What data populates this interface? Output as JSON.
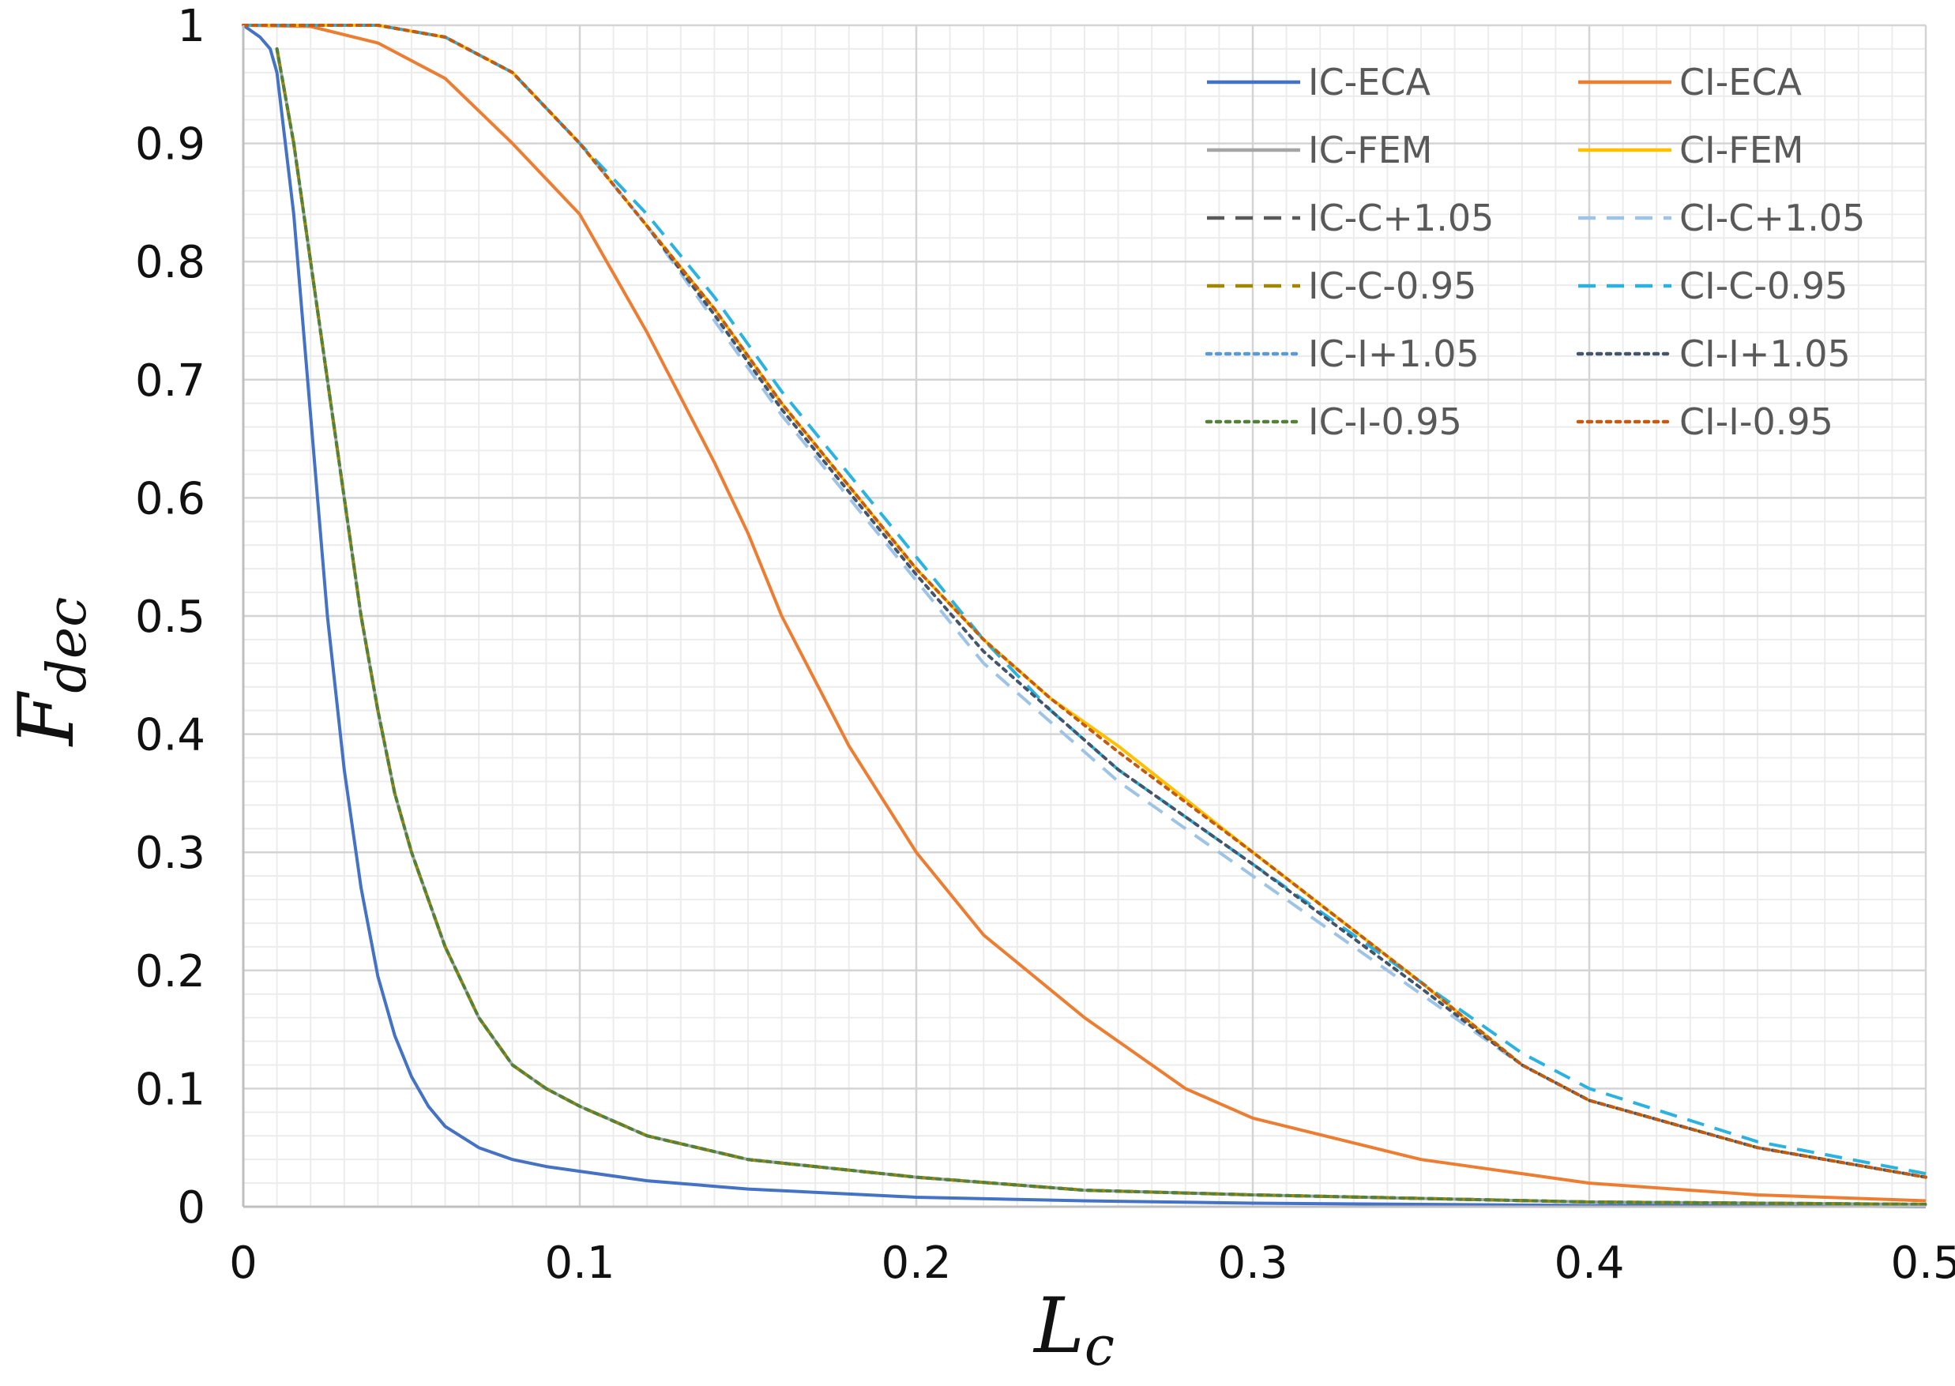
{
  "chart_data": {
    "type": "line",
    "title": "",
    "xlabel": "L",
    "xlabel_sub": "c",
    "ylabel": "F",
    "ylabel_sub": "dec",
    "xlim": [
      0,
      0.5
    ],
    "ylim": [
      0,
      1
    ],
    "grid": true,
    "minor_grid": true,
    "legend_position": "top-right",
    "x_ticks": [
      0,
      0.1,
      0.2,
      0.3,
      0.4,
      0.5
    ],
    "x_tick_labels": [
      "0",
      "0.1",
      "0.2",
      "0.3",
      "0.4",
      "0.5"
    ],
    "y_ticks": [
      0,
      0.1,
      0.2,
      0.3,
      0.4,
      0.5,
      0.6,
      0.7,
      0.8,
      0.9,
      1
    ],
    "y_tick_labels": [
      "0",
      "0.1",
      "0.2",
      "0.3",
      "0.4",
      "0.5",
      "0.6",
      "0.7",
      "0.8",
      "0.9",
      "1"
    ],
    "series": [
      {
        "name": "IC-ECA",
        "color": "#4472C4",
        "style": "solid",
        "width": 4,
        "x": [
          0,
          0.005,
          0.008,
          0.01,
          0.015,
          0.02,
          0.025,
          0.03,
          0.035,
          0.04,
          0.045,
          0.05,
          0.055,
          0.06,
          0.07,
          0.08,
          0.09,
          0.1,
          0.12,
          0.15,
          0.2,
          0.25,
          0.3,
          0.35,
          0.4,
          0.45,
          0.5
        ],
        "y": [
          1.0,
          0.99,
          0.98,
          0.96,
          0.84,
          0.67,
          0.5,
          0.37,
          0.27,
          0.195,
          0.145,
          0.11,
          0.085,
          0.068,
          0.05,
          0.04,
          0.034,
          0.03,
          0.022,
          0.015,
          0.008,
          0.005,
          0.003,
          0.002,
          0.001,
          0.001,
          0.0
        ]
      },
      {
        "name": "CI-ECA",
        "color": "#ED7D31",
        "style": "solid",
        "width": 4,
        "x": [
          0,
          0.02,
          0.04,
          0.06,
          0.08,
          0.1,
          0.12,
          0.14,
          0.15,
          0.16,
          0.18,
          0.2,
          0.22,
          0.25,
          0.28,
          0.3,
          0.35,
          0.4,
          0.45,
          0.5
        ],
        "y": [
          1.0,
          0.999,
          0.985,
          0.955,
          0.9,
          0.84,
          0.74,
          0.63,
          0.57,
          0.5,
          0.39,
          0.3,
          0.23,
          0.16,
          0.1,
          0.075,
          0.04,
          0.02,
          0.01,
          0.005
        ]
      },
      {
        "name": "IC-FEM",
        "color": "#A5A5A5",
        "style": "solid",
        "width": 4,
        "x": [
          0.01,
          0.015,
          0.02,
          0.025,
          0.03,
          0.035,
          0.04,
          0.045,
          0.05,
          0.06,
          0.07,
          0.08,
          0.09,
          0.1,
          0.12,
          0.15,
          0.2,
          0.25,
          0.3,
          0.4,
          0.5
        ],
        "y": [
          0.98,
          0.9,
          0.8,
          0.7,
          0.6,
          0.5,
          0.42,
          0.35,
          0.3,
          0.22,
          0.16,
          0.12,
          0.1,
          0.085,
          0.06,
          0.04,
          0.025,
          0.014,
          0.01,
          0.004,
          0.002
        ]
      },
      {
        "name": "CI-FEM",
        "color": "#FFC000",
        "style": "solid",
        "width": 4,
        "x": [
          0,
          0.02,
          0.04,
          0.06,
          0.08,
          0.1,
          0.12,
          0.14,
          0.16,
          0.18,
          0.2,
          0.22,
          0.24,
          0.26,
          0.3,
          0.35,
          0.38,
          0.4,
          0.45,
          0.5
        ],
        "y": [
          1.0,
          1.0,
          1.0,
          0.99,
          0.96,
          0.9,
          0.83,
          0.76,
          0.68,
          0.61,
          0.54,
          0.48,
          0.43,
          0.39,
          0.3,
          0.19,
          0.12,
          0.09,
          0.05,
          0.025
        ]
      },
      {
        "name": "IC-C+1.05",
        "color": "#595959",
        "style": "dashed",
        "width": 4,
        "x": [
          0.01,
          0.015,
          0.02,
          0.025,
          0.03,
          0.035,
          0.04,
          0.045,
          0.05,
          0.06,
          0.07,
          0.08,
          0.09,
          0.1,
          0.12,
          0.15,
          0.2,
          0.25,
          0.3,
          0.4,
          0.5
        ],
        "y": [
          0.98,
          0.9,
          0.8,
          0.7,
          0.6,
          0.5,
          0.42,
          0.35,
          0.3,
          0.22,
          0.16,
          0.12,
          0.1,
          0.085,
          0.06,
          0.04,
          0.025,
          0.014,
          0.01,
          0.004,
          0.002
        ]
      },
      {
        "name": "CI-C+1.05",
        "color": "#9DC3E6",
        "style": "dashed",
        "width": 4,
        "x": [
          0,
          0.02,
          0.04,
          0.06,
          0.08,
          0.1,
          0.12,
          0.14,
          0.16,
          0.18,
          0.2,
          0.22,
          0.24,
          0.26,
          0.3,
          0.35,
          0.38,
          0.4,
          0.45,
          0.5
        ],
        "y": [
          1.0,
          1.0,
          1.0,
          0.99,
          0.96,
          0.9,
          0.83,
          0.75,
          0.67,
          0.6,
          0.53,
          0.46,
          0.41,
          0.36,
          0.28,
          0.18,
          0.12,
          0.09,
          0.05,
          0.025
        ]
      },
      {
        "name": "IC-C-0.95",
        "color": "#A08800",
        "style": "dashed",
        "width": 4,
        "x": [
          0.01,
          0.015,
          0.02,
          0.025,
          0.03,
          0.035,
          0.04,
          0.045,
          0.05,
          0.06,
          0.07,
          0.08,
          0.09,
          0.1,
          0.12,
          0.15,
          0.2,
          0.25,
          0.3,
          0.4,
          0.5
        ],
        "y": [
          0.98,
          0.9,
          0.8,
          0.7,
          0.6,
          0.5,
          0.42,
          0.35,
          0.3,
          0.22,
          0.16,
          0.12,
          0.1,
          0.085,
          0.06,
          0.04,
          0.025,
          0.014,
          0.01,
          0.004,
          0.002
        ]
      },
      {
        "name": "CI-C-0.95",
        "color": "#2AB3E0",
        "style": "dashed",
        "width": 4,
        "x": [
          0,
          0.02,
          0.04,
          0.06,
          0.08,
          0.1,
          0.12,
          0.14,
          0.16,
          0.18,
          0.2,
          0.22,
          0.24,
          0.26,
          0.3,
          0.35,
          0.38,
          0.4,
          0.45,
          0.5
        ],
        "y": [
          1.0,
          1.0,
          1.0,
          0.99,
          0.96,
          0.9,
          0.84,
          0.77,
          0.69,
          0.62,
          0.55,
          0.48,
          0.42,
          0.37,
          0.29,
          0.19,
          0.13,
          0.1,
          0.055,
          0.028
        ]
      },
      {
        "name": "IC-I+1.05",
        "color": "#5B9BD5",
        "style": "dotted",
        "width": 4,
        "x": [
          0.01,
          0.015,
          0.02,
          0.025,
          0.03,
          0.035,
          0.04,
          0.045,
          0.05,
          0.06,
          0.07,
          0.08,
          0.09,
          0.1,
          0.12,
          0.15,
          0.2,
          0.25,
          0.3,
          0.4,
          0.5
        ],
        "y": [
          0.98,
          0.9,
          0.8,
          0.7,
          0.6,
          0.5,
          0.42,
          0.35,
          0.3,
          0.22,
          0.16,
          0.12,
          0.1,
          0.085,
          0.06,
          0.04,
          0.025,
          0.014,
          0.01,
          0.004,
          0.002
        ]
      },
      {
        "name": "CI-I+1.05",
        "color": "#44546A",
        "style": "dotted",
        "width": 4,
        "x": [
          0,
          0.02,
          0.04,
          0.06,
          0.08,
          0.1,
          0.12,
          0.14,
          0.16,
          0.18,
          0.2,
          0.22,
          0.24,
          0.26,
          0.3,
          0.35,
          0.38,
          0.4,
          0.45,
          0.5
        ],
        "y": [
          1.0,
          1.0,
          1.0,
          0.99,
          0.96,
          0.9,
          0.83,
          0.755,
          0.675,
          0.605,
          0.535,
          0.47,
          0.42,
          0.37,
          0.29,
          0.185,
          0.12,
          0.09,
          0.05,
          0.025
        ]
      },
      {
        "name": "IC-I-0.95",
        "color": "#548235",
        "style": "dotted",
        "width": 4,
        "x": [
          0.01,
          0.015,
          0.02,
          0.025,
          0.03,
          0.035,
          0.04,
          0.045,
          0.05,
          0.06,
          0.07,
          0.08,
          0.09,
          0.1,
          0.12,
          0.15,
          0.2,
          0.25,
          0.3,
          0.4,
          0.5
        ],
        "y": [
          0.98,
          0.9,
          0.8,
          0.7,
          0.6,
          0.5,
          0.42,
          0.35,
          0.3,
          0.22,
          0.16,
          0.12,
          0.1,
          0.085,
          0.06,
          0.04,
          0.025,
          0.014,
          0.01,
          0.004,
          0.002
        ]
      },
      {
        "name": "CI-I-0.95",
        "color": "#C55A11",
        "style": "dotted",
        "width": 4,
        "x": [
          0,
          0.02,
          0.04,
          0.06,
          0.08,
          0.1,
          0.12,
          0.14,
          0.16,
          0.18,
          0.2,
          0.22,
          0.24,
          0.26,
          0.3,
          0.35,
          0.38,
          0.4,
          0.45,
          0.5
        ],
        "y": [
          1.0,
          1.0,
          1.0,
          0.99,
          0.96,
          0.9,
          0.83,
          0.76,
          0.68,
          0.61,
          0.54,
          0.48,
          0.43,
          0.385,
          0.3,
          0.19,
          0.12,
          0.09,
          0.05,
          0.025
        ]
      }
    ]
  }
}
